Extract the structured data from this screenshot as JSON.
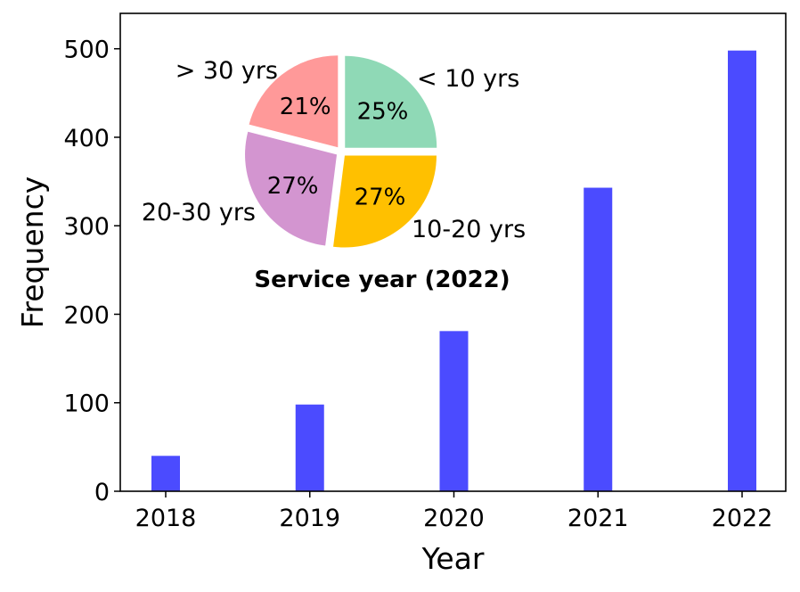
{
  "chart_data": [
    {
      "type": "bar",
      "categories": [
        "2018",
        "2019",
        "2020",
        "2021",
        "2022"
      ],
      "values": [
        40,
        98,
        181,
        343,
        498
      ],
      "xlabel": "Year",
      "ylabel": "Frequency",
      "ylim": [
        0,
        540
      ],
      "yticks": [
        0,
        100,
        200,
        300,
        400,
        500
      ],
      "ytick_labels": [
        "0",
        "100",
        "200",
        "300",
        "400",
        "500"
      ],
      "bar_color": "#4b4bff",
      "grid": false
    },
    {
      "type": "pie",
      "title": "Service year (2022)",
      "labels": [
        "< 10 yrs",
        "10-20 yrs",
        "20-30 yrs",
        "> 30 yrs"
      ],
      "values": [
        25,
        27,
        27,
        21
      ],
      "pct_labels": [
        "25%",
        "27%",
        "27%",
        "21%"
      ],
      "colors": [
        "#8fd9b6",
        "#ffc000",
        "#d395d0",
        "#ff9999"
      ],
      "legend": "none"
    }
  ]
}
